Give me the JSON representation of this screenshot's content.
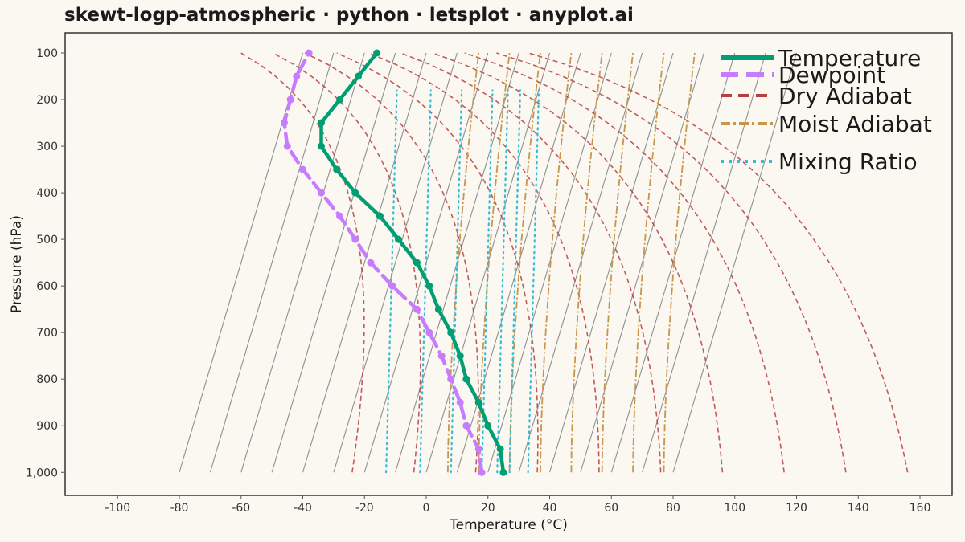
{
  "title": "skewt-logp-atmospheric · python · letsplot · anyplot.ai",
  "chart_data": {
    "type": "line",
    "title": "skewt-logp-atmospheric · python · letsplot · anyplot.ai",
    "xlabel": "Temperature (°C)",
    "ylabel": "Pressure (hPa)",
    "xlim": [
      -116,
      169
    ],
    "ylim": [
      1050,
      100
    ],
    "y_scale": "linear",
    "x_ticks": [
      -100,
      -80,
      -60,
      -40,
      -20,
      0,
      20,
      40,
      60,
      80,
      100,
      120,
      140,
      160
    ],
    "x_tick_labels": [
      "-100",
      "-80",
      "-60",
      "-40",
      "-20",
      "0",
      "20",
      "40",
      "60",
      "80",
      "100",
      "120",
      "140",
      "160"
    ],
    "y_ticks": [
      100,
      200,
      300,
      400,
      500,
      600,
      700,
      800,
      900,
      1000
    ],
    "y_tick_labels": [
      "100",
      "200",
      "300",
      "400",
      "500",
      "600",
      "700",
      "800",
      "900",
      "1,000"
    ],
    "grid": false,
    "legend_position": "top-right",
    "legend": [
      "Temperature",
      "Dewpoint",
      "Dry Adiabat",
      "Moist Adiabat",
      "Mixing Ratio"
    ],
    "colors": {
      "temperature": "#009E73",
      "dewpoint": "#C77CFF",
      "dry_adiabat": "#B5403E",
      "moist_adiabat": "#C8954A",
      "mixing_ratio": "#35BCD4",
      "isotherm": "#8F8F8F",
      "background": "#FAF8F1",
      "panel_border": "#333333"
    },
    "series": [
      {
        "name": "Temperature",
        "line_style": "solid",
        "pressure": [
          1000,
          950,
          900,
          850,
          800,
          750,
          700,
          650,
          600,
          550,
          500,
          450,
          400,
          350,
          300,
          250,
          200,
          150,
          100
        ],
        "x": [
          25,
          24,
          20,
          17,
          13,
          11,
          8,
          4,
          1,
          -3,
          -9,
          -15,
          -23,
          -29,
          -34,
          -34,
          -28,
          -22,
          -16
        ]
      },
      {
        "name": "Dewpoint",
        "line_style": "dashed",
        "pressure": [
          1000,
          950,
          900,
          850,
          800,
          750,
          700,
          650,
          600,
          550,
          500,
          450,
          400,
          350,
          300,
          250,
          200,
          150,
          100
        ],
        "x": [
          18,
          17,
          13,
          11,
          8,
          5,
          1,
          -3,
          -11,
          -18,
          -23,
          -28,
          -34,
          -40,
          -45,
          -46,
          -44,
          -42,
          -38
        ]
      }
    ],
    "reference_lines": {
      "isotherms_top_x": [
        -40,
        -30,
        -20,
        -10,
        0,
        10,
        20,
        30,
        40,
        50,
        60,
        70,
        80,
        90,
        100,
        110,
        120
      ],
      "isotherms_bottom_x": [
        -80,
        -70,
        -60,
        -50,
        -40,
        -30,
        -20,
        -10,
        0,
        10,
        20,
        30,
        40,
        50,
        60,
        70,
        80,
        90
      ],
      "dry_adiabats_surface_x": [
        -24,
        -4,
        16,
        36,
        56,
        76,
        96,
        116,
        136,
        156
      ],
      "moist_adiabats_surface_x": [
        7,
        17,
        27,
        37,
        47,
        57,
        67,
        77
      ],
      "mixing_ratio_surface_x": [
        -13,
        -2,
        8,
        18,
        23,
        27,
        33
      ]
    }
  }
}
